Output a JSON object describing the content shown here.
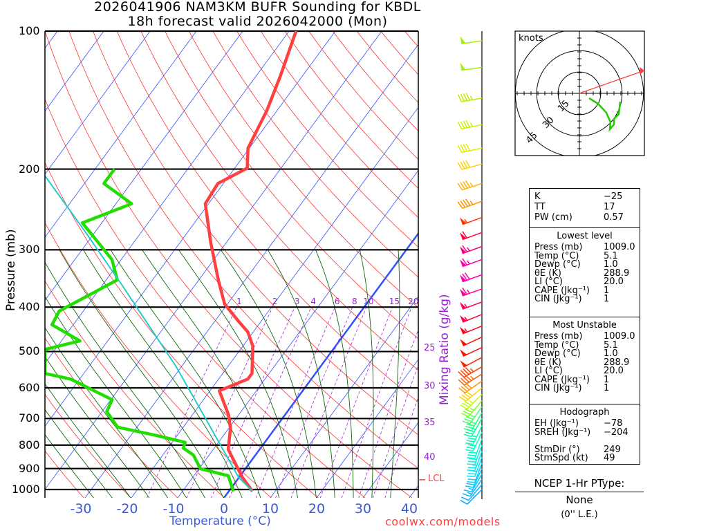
{
  "title": {
    "line1": "2026041906 NAM3KM BUFR Sounding for KBDL",
    "line2": "18h forecast valid 2026042000 (Mon)"
  },
  "chart_data": {
    "type": "line",
    "subtype": "skew-t log-p",
    "xlabel": "Temperature (°C)",
    "ylabel": "Pressure (mb)",
    "secondary_label": "Mixing Ratio (g/kg)",
    "pressure_ticks": [
      100,
      200,
      300,
      400,
      500,
      600,
      700,
      800,
      900,
      1000
    ],
    "temperature_ticks": [
      -30,
      -20,
      -10,
      0,
      10,
      20,
      30,
      40
    ],
    "mixing_ratio_ticks": [
      1,
      2,
      3,
      4,
      6,
      8,
      10,
      15,
      20
    ],
    "adiabat_labels": [
      "25",
      "30",
      "35",
      "40"
    ],
    "lcl_label": "LCL",
    "lcl_pressure": 952,
    "xlim": [
      -40,
      42
    ],
    "ylim": [
      1043,
      100
    ],
    "series": [
      {
        "name": "Temperature",
        "color": "#ff4040",
        "points": [
          [
            1009,
            5.1
          ],
          [
            939,
            0.6
          ],
          [
            817,
            -6.8
          ],
          [
            736,
            -9.6
          ],
          [
            687,
            -12.2
          ],
          [
            609,
            -18.0
          ],
          [
            574,
            -13.7
          ],
          [
            558,
            -13.7
          ],
          [
            486,
            -17.9
          ],
          [
            453,
            -21.2
          ],
          [
            430,
            -24.8
          ],
          [
            394,
            -30.6
          ],
          [
            349,
            -35.8
          ],
          [
            289,
            -43.4
          ],
          [
            238,
            -50.7
          ],
          [
            215,
            -51.2
          ],
          [
            199,
            -47.3
          ],
          [
            180,
            -50.3
          ],
          [
            149,
            -52.2
          ],
          [
            125,
            -54.8
          ],
          [
            100,
            -58.5
          ]
        ]
      },
      {
        "name": "Dewpoint",
        "color": "#22dd00",
        "points": [
          [
            1009,
            1.0
          ],
          [
            933,
            -2.6
          ],
          [
            901,
            -9.7
          ],
          [
            841,
            -13.4
          ],
          [
            812,
            -16.7
          ],
          [
            789,
            -17.2
          ],
          [
            762,
            -24.6
          ],
          [
            731,
            -34.2
          ],
          [
            676,
            -39.0
          ],
          [
            637,
            -39.7
          ],
          [
            574,
            -52.0
          ],
          [
            558,
            -58.4
          ],
          [
            495,
            -62.2
          ],
          [
            474,
            -56.0
          ],
          [
            437,
            -64.6
          ],
          [
            408,
            -65.2
          ],
          [
            349,
            -57.6
          ],
          [
            315,
            -62.0
          ],
          [
            262,
            -74.2
          ],
          [
            238,
            -66.6
          ],
          [
            215,
            -75.8
          ],
          [
            200,
            -75.8
          ]
        ]
      },
      {
        "name": "Parcel",
        "color": "#22cccc",
        "points": [
          [
            1009,
            5.1
          ],
          [
            939,
            -0.2
          ],
          [
            711,
            -15.7
          ],
          [
            539,
            -31.2
          ],
          [
            355,
            -56.3
          ],
          [
            269,
            -73.3
          ],
          [
            207,
            -89.7
          ]
        ]
      }
    ],
    "winds": [
      {
        "p": 105,
        "dir": 262,
        "spd": 50,
        "color": "#a8f000"
      },
      {
        "p": 120,
        "dir": 262,
        "spd": 50,
        "color": "#a8f000"
      },
      {
        "p": 140,
        "dir": 260,
        "spd": 45,
        "color": "#b8f000"
      },
      {
        "p": 160,
        "dir": 258,
        "spd": 45,
        "color": "#c8f000"
      },
      {
        "p": 180,
        "dir": 258,
        "spd": 40,
        "color": "#e0f000"
      },
      {
        "p": 195,
        "dir": 255,
        "spd": 40,
        "color": "#ffd000"
      },
      {
        "p": 215,
        "dir": 252,
        "spd": 45,
        "color": "#ffb000"
      },
      {
        "p": 235,
        "dir": 250,
        "spd": 45,
        "color": "#ff9000"
      },
      {
        "p": 255,
        "dir": 250,
        "spd": 55,
        "color": "#ff3000"
      },
      {
        "p": 275,
        "dir": 250,
        "spd": 60,
        "color": "#ff0040"
      },
      {
        "p": 295,
        "dir": 250,
        "spd": 65,
        "color": "#ff0080"
      },
      {
        "p": 315,
        "dir": 250,
        "spd": 65,
        "color": "#ff00a0"
      },
      {
        "p": 340,
        "dir": 250,
        "spd": 70,
        "color": "#ff00b0"
      },
      {
        "p": 365,
        "dir": 250,
        "spd": 65,
        "color": "#ff0090"
      },
      {
        "p": 390,
        "dir": 250,
        "spd": 55,
        "color": "#ff0060"
      },
      {
        "p": 415,
        "dir": 248,
        "spd": 55,
        "color": "#ff0040"
      },
      {
        "p": 440,
        "dir": 248,
        "spd": 55,
        "color": "#ff0020"
      },
      {
        "p": 465,
        "dir": 245,
        "spd": 50,
        "color": "#ff1000"
      },
      {
        "p": 490,
        "dir": 245,
        "spd": 50,
        "color": "#ff1000"
      },
      {
        "p": 515,
        "dir": 242,
        "spd": 50,
        "color": "#ff2000"
      },
      {
        "p": 540,
        "dir": 240,
        "spd": 45,
        "color": "#ff4000"
      },
      {
        "p": 560,
        "dir": 238,
        "spd": 45,
        "color": "#ff6000"
      },
      {
        "p": 580,
        "dir": 235,
        "spd": 40,
        "color": "#ff9000"
      },
      {
        "p": 600,
        "dir": 230,
        "spd": 40,
        "color": "#ffd000"
      },
      {
        "p": 620,
        "dir": 225,
        "spd": 35,
        "color": "#c0ff00"
      },
      {
        "p": 640,
        "dir": 220,
        "spd": 35,
        "color": "#80ff20"
      },
      {
        "p": 660,
        "dir": 215,
        "spd": 35,
        "color": "#40ff60"
      },
      {
        "p": 680,
        "dir": 210,
        "spd": 35,
        "color": "#20ff80"
      },
      {
        "p": 700,
        "dir": 210,
        "spd": 35,
        "color": "#00ffa0"
      },
      {
        "p": 725,
        "dir": 205,
        "spd": 35,
        "color": "#00ffb0"
      },
      {
        "p": 750,
        "dir": 205,
        "spd": 30,
        "color": "#00ffc0"
      },
      {
        "p": 775,
        "dir": 200,
        "spd": 30,
        "color": "#00f8d0"
      },
      {
        "p": 800,
        "dir": 200,
        "spd": 30,
        "color": "#00f0e0"
      },
      {
        "p": 825,
        "dir": 200,
        "spd": 25,
        "color": "#00e8f0"
      },
      {
        "p": 850,
        "dir": 200,
        "spd": 25,
        "color": "#00e0ff"
      },
      {
        "p": 875,
        "dir": 200,
        "spd": 20,
        "color": "#00d0ff"
      },
      {
        "p": 900,
        "dir": 205,
        "spd": 20,
        "color": "#00c8ff"
      },
      {
        "p": 925,
        "dir": 210,
        "spd": 15,
        "color": "#00c0ff"
      },
      {
        "p": 950,
        "dir": 215,
        "spd": 15,
        "color": "#00b8ff"
      },
      {
        "p": 975,
        "dir": 220,
        "spd": 10,
        "color": "#00b0ff"
      },
      {
        "p": 1000,
        "dir": 225,
        "spd": 10,
        "color": "#00a8ff"
      }
    ],
    "hodograph": {
      "units_label": "knots",
      "ring_labels": [
        "15",
        "30",
        "45"
      ],
      "rings_kt": [
        15,
        30,
        45
      ],
      "trace_uv_kt": [
        [
          7,
          -3.5
        ],
        [
          13.5,
          -7.5
        ],
        [
          19.5,
          -14
        ],
        [
          22.5,
          -21
        ],
        [
          22,
          -26
        ],
        [
          25,
          -22.5
        ],
        [
          25,
          -18.5
        ],
        [
          28.5,
          -15
        ],
        [
          29.5,
          -6
        ]
      ],
      "storm_motion_uv_kt": [
        47,
        16.5
      ]
    }
  },
  "stats": {
    "top": [
      {
        "label": "K",
        "value": "−25"
      },
      {
        "label": "TT",
        "value": "17"
      },
      {
        "label": "PW (cm)",
        "value": "0.57"
      }
    ],
    "lowest": {
      "header": "Lowest level",
      "rows": [
        {
          "label": "Press (mb)",
          "value": "1009.0"
        },
        {
          "label": "Temp (°C)",
          "value": "5.1"
        },
        {
          "label": "Dewp (°C)",
          "value": "1.0"
        },
        {
          "label": "θE (K)",
          "value": "288.9"
        },
        {
          "label": "LI (°C)",
          "value": "20.0"
        },
        {
          "label": "CAPE (Jkg⁻¹)",
          "value": "1"
        },
        {
          "label": "CIN (Jkg⁻¹)",
          "value": "1"
        }
      ]
    },
    "unstable": {
      "header": "Most Unstable",
      "rows": [
        {
          "label": "Press (mb)",
          "value": "1009.0"
        },
        {
          "label": "Temp (°C)",
          "value": "5.1"
        },
        {
          "label": "Dewp (°C)",
          "value": "1.0"
        },
        {
          "label": "θE (K)",
          "value": "288.9"
        },
        {
          "label": "LI (°C)",
          "value": "20.0"
        },
        {
          "label": "CAPE (Jkg⁻¹)",
          "value": "1"
        },
        {
          "label": "CIN (Jkg⁻¹)",
          "value": "1"
        }
      ]
    },
    "hodo": {
      "header": "Hodograph",
      "rows": [
        {
          "label": "EH (Jkg⁻¹)",
          "value": "−78"
        },
        {
          "label": "SREH (Jkg⁻¹)",
          "value": "−204"
        },
        {
          "label": "",
          "value": ""
        },
        {
          "label": "StmDir (°)",
          "value": "249"
        },
        {
          "label": "StmSpd (kt)",
          "value": "49"
        }
      ]
    }
  },
  "ptype": {
    "header": "NCEP 1-Hr PType:",
    "value": "None",
    "amount": "(0'' L.E.)"
  },
  "credit": "coolwx.com/models"
}
